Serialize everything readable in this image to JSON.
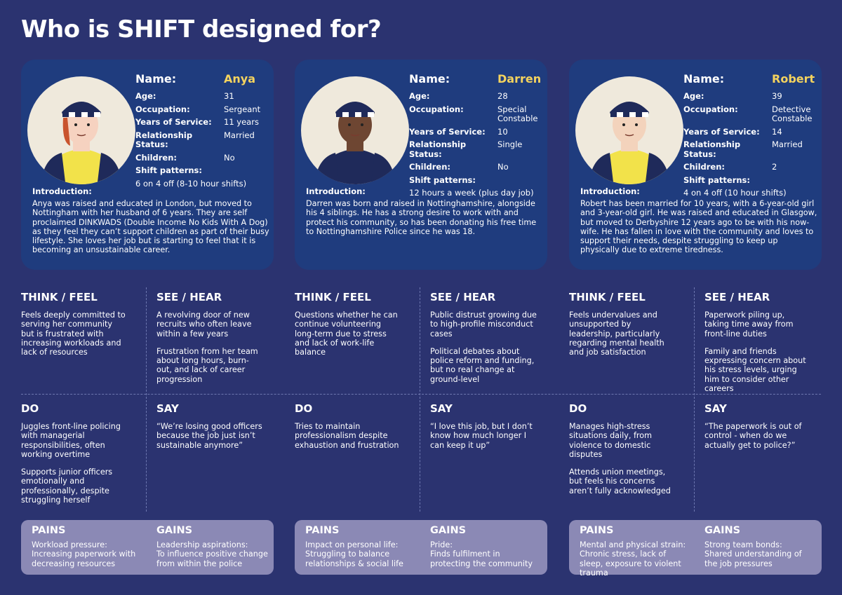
{
  "title": "Who is SHIFT designed for?",
  "personas": [
    {
      "name_label": "Name:",
      "name": "Anya",
      "fields": [
        {
          "label": "Age:",
          "value": "31"
        },
        {
          "label": "Occupation:",
          "value": "Sergeant"
        },
        {
          "label": "Years of Service:",
          "value": "11 years"
        },
        {
          "label": "Relationship Status:",
          "value": "Married"
        },
        {
          "label": "Children:",
          "value": "No"
        }
      ],
      "shift_label": "Shift patterns:",
      "shift": "6 on 4 off (8-10 hour shifts)",
      "intro_label": "Introduction:",
      "intro": "Anya was raised and educated in London, but moved to Nottingham with her husband of 6 years. They are self proclaimed DINKWADS (Double Income No Kids With A Dog) as they feel they can’t support children as part of their busy lifestyle. She loves her job but is starting to feel that it is becoming an unsustainable career.",
      "quadrants": [
        {
          "heading": "THINK / FEEL",
          "items": [
            "Feels deeply committed to serving her community but is frustrated with increasing workloads and lack of resources"
          ]
        },
        {
          "heading": "SEE / HEAR",
          "items": [
            "A revolving door of new recruits who often leave within a few years",
            "Frustration from her team about long hours, burn-out, and lack of career progression"
          ]
        },
        {
          "heading": "DO",
          "items": [
            "Juggles front-line policing with managerial responsibilities, often working overtime",
            "Supports junior officers emotionally and professionally, despite struggling herself"
          ]
        },
        {
          "heading": "SAY",
          "items": [
            "“We’re losing good officers because the job just isn’t sustainable anymore”"
          ]
        }
      ],
      "pains": {
        "heading": "PAINS",
        "label": "Workload pressure:",
        "text": "Increasing paperwork with decreasing resources"
      },
      "gains": {
        "heading": "GAINS",
        "label": "Leadership aspirations:",
        "text": "To influence positive change from within the police"
      }
    },
    {
      "name_label": "Name:",
      "name": "Darren",
      "fields": [
        {
          "label": "Age:",
          "value": "28"
        },
        {
          "label": "Occupation:",
          "value": "Special Constable"
        },
        {
          "label": "Years of Service:",
          "value": "10"
        },
        {
          "label": "Relationship Status:",
          "value": "Single"
        },
        {
          "label": "Children:",
          "value": "No"
        }
      ],
      "shift_label": "Shift patterns:",
      "shift": "12 hours a week (plus day job)",
      "intro_label": "Introduction:",
      "intro": "Darren was born and raised in Nottinghamshire, alongside his 4 siblings. He has a strong desire to work with and protect his community, so has been donating his free time to Nottinghamshire Police since he was 18.",
      "quadrants": [
        {
          "heading": "THINK / FEEL",
          "items": [
            "Questions whether he can continue volunteering long-term due to stress and lack of work-life balance"
          ]
        },
        {
          "heading": "SEE / HEAR",
          "items": [
            "Public distrust growing due to high-profile misconduct cases",
            "Political debates about police reform and funding, but no real change at ground-level"
          ]
        },
        {
          "heading": "DO",
          "items": [
            "Tries to maintain professionalism despite exhaustion and frustration"
          ]
        },
        {
          "heading": "SAY",
          "items": [
            "“I love this job, but I don’t know how much longer I can keep it up”"
          ]
        }
      ],
      "pains": {
        "heading": "PAINS",
        "label": "Impact on personal life:",
        "text": "Struggling to balance relationships & social life"
      },
      "gains": {
        "heading": "GAINS",
        "label": "Pride:",
        "text": "Finds fulfilment in protecting the community"
      }
    },
    {
      "name_label": "Name:",
      "name": "Robert",
      "fields": [
        {
          "label": "Age:",
          "value": "39"
        },
        {
          "label": "Occupation:",
          "value": "Detective Constable"
        },
        {
          "label": "Years of Service:",
          "value": "14"
        },
        {
          "label": "Relationship Status:",
          "value": "Married"
        },
        {
          "label": "Children:",
          "value": "2"
        }
      ],
      "shift_label": "Shift patterns:",
      "shift": "4 on 4 off (10 hour shifts)",
      "intro_label": "Introduction:",
      "intro": "Robert has been married for 10 years, with a 6-year-old girl and 3-year-old girl. He was raised and educated in Glasgow, but moved to Derbyshire 12 years ago to be with his now-wife. He has fallen in love with the community and loves to support their needs, despite struggling to keep up physically due to extreme tiredness.",
      "quadrants": [
        {
          "heading": "THINK / FEEL",
          "items": [
            "Feels undervalues and unsupported by leadership, particularly regarding mental health and job satisfaction"
          ]
        },
        {
          "heading": "SEE / HEAR",
          "items": [
            "Paperwork piling up, taking time away from front-line duties",
            "Family and friends expressing concern about his stress levels, urging him to consider other careers"
          ]
        },
        {
          "heading": "DO",
          "items": [
            "Manages high-stress situations daily, from violence to domestic disputes",
            "Attends union meetings, but feels his concerns aren’t fully acknowledged"
          ]
        },
        {
          "heading": "SAY",
          "items": [
            "“The paperwork is out of control - when do we actually get to police?”"
          ]
        }
      ],
      "pains": {
        "heading": "PAINS",
        "label": "Mental and physical strain:",
        "text": "Chronic stress, lack of sleep, exposure to violent trauma"
      },
      "gains": {
        "heading": "GAINS",
        "label": "Strong team bonds:",
        "text": "Shared understanding of the job pressures"
      }
    }
  ]
}
